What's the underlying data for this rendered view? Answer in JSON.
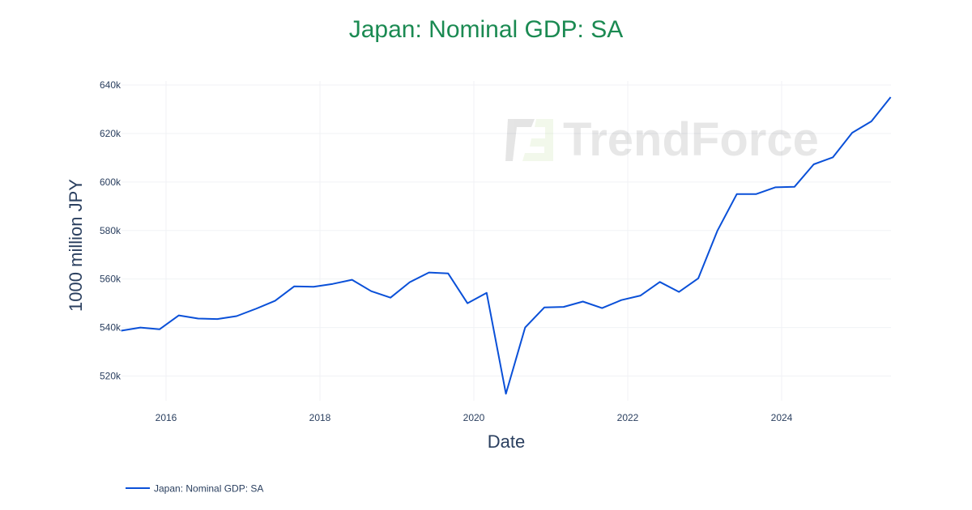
{
  "chart_data": {
    "type": "line",
    "title": "Japan: Nominal GDP: SA",
    "xlabel": "Date",
    "ylabel": "1000 million JPY",
    "x_ticks": [
      "2016",
      "2018",
      "2020",
      "2022",
      "2024"
    ],
    "y_ticks": [
      "520k",
      "540k",
      "560k",
      "580k",
      "600k",
      "620k",
      "640k"
    ],
    "y_tick_values": [
      520,
      540,
      560,
      580,
      600,
      620,
      640
    ],
    "xlim": [
      "2015-06",
      "2025-06"
    ],
    "ylim": [
      508,
      642
    ],
    "grid": true,
    "legend_position": "bottom-left",
    "watermark": "TrendForce",
    "line_color": "#0a50d8",
    "title_color": "#1b8a52",
    "series": [
      {
        "name": "Japan: Nominal GDP: SA",
        "x": [
          "2015-06",
          "2015-09",
          "2015-12",
          "2016-03",
          "2016-06",
          "2016-09",
          "2016-12",
          "2017-03",
          "2017-06",
          "2017-09",
          "2017-12",
          "2018-03",
          "2018-06",
          "2018-09",
          "2018-12",
          "2019-03",
          "2019-06",
          "2019-09",
          "2019-12",
          "2020-03",
          "2020-06",
          "2020-09",
          "2020-12",
          "2021-03",
          "2021-06",
          "2021-09",
          "2021-12",
          "2022-03",
          "2022-06",
          "2022-09",
          "2022-12",
          "2023-03",
          "2023-06",
          "2023-09",
          "2023-12",
          "2024-03",
          "2024-06",
          "2024-09",
          "2024-12",
          "2025-03",
          "2025-06"
        ],
        "values": [
          538.7,
          540.0,
          539.3,
          545.0,
          543.7,
          543.5,
          544.7,
          547.7,
          551.0,
          557.0,
          556.8,
          558.0,
          559.7,
          555.0,
          552.3,
          558.7,
          562.7,
          562.3,
          550.0,
          554.3,
          512.7,
          540.0,
          548.3,
          548.5,
          550.7,
          548.0,
          551.3,
          553.2,
          558.8,
          554.7,
          560.3,
          580.0,
          595.0,
          595.0,
          597.8,
          598.0,
          607.3,
          610.2,
          620.3,
          625.0,
          635.0
        ]
      }
    ]
  }
}
